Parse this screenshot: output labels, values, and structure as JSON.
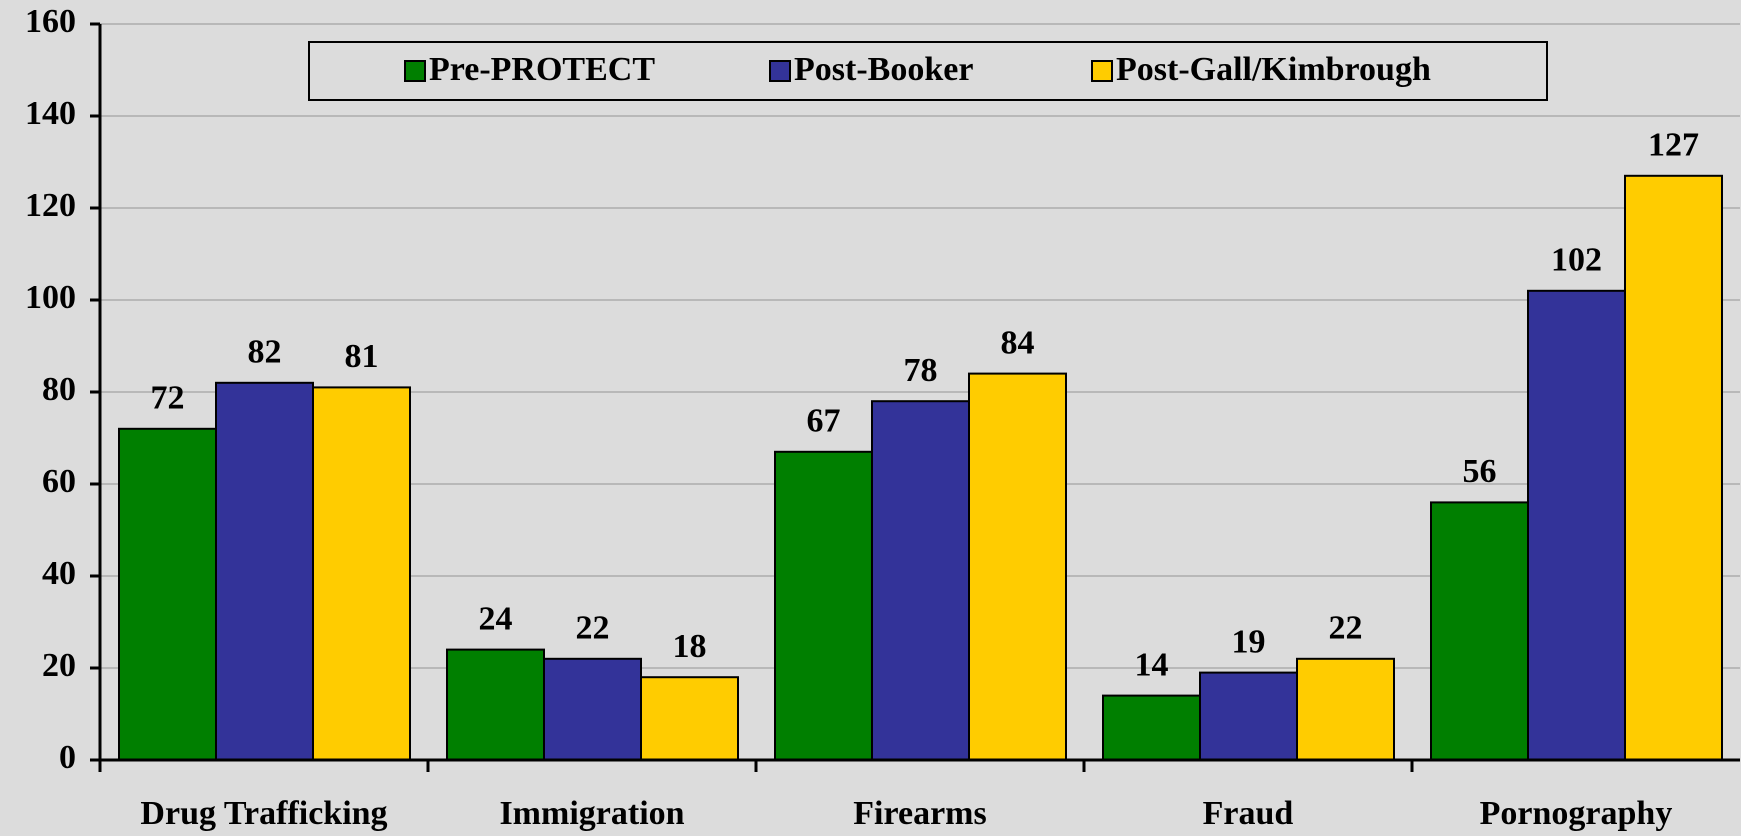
{
  "chart_data": {
    "type": "bar",
    "categories": [
      "Drug Trafficking",
      "Immigration",
      "Firearms",
      "Fraud",
      "Pornography"
    ],
    "series": [
      {
        "name": "Pre-PROTECT",
        "color": "#007f00",
        "values": [
          72,
          24,
          67,
          14,
          56
        ]
      },
      {
        "name": "Post-Booker",
        "color": "#333399",
        "values": [
          82,
          22,
          78,
          19,
          102
        ]
      },
      {
        "name": "Post-Gall/Kimbrough",
        "color": "#ffcc00",
        "values": [
          81,
          18,
          84,
          22,
          127
        ]
      }
    ],
    "ylim": [
      0,
      160
    ],
    "yticks": [
      0,
      20,
      40,
      60,
      80,
      100,
      120,
      140,
      160
    ],
    "grid": true,
    "legend": "top"
  }
}
